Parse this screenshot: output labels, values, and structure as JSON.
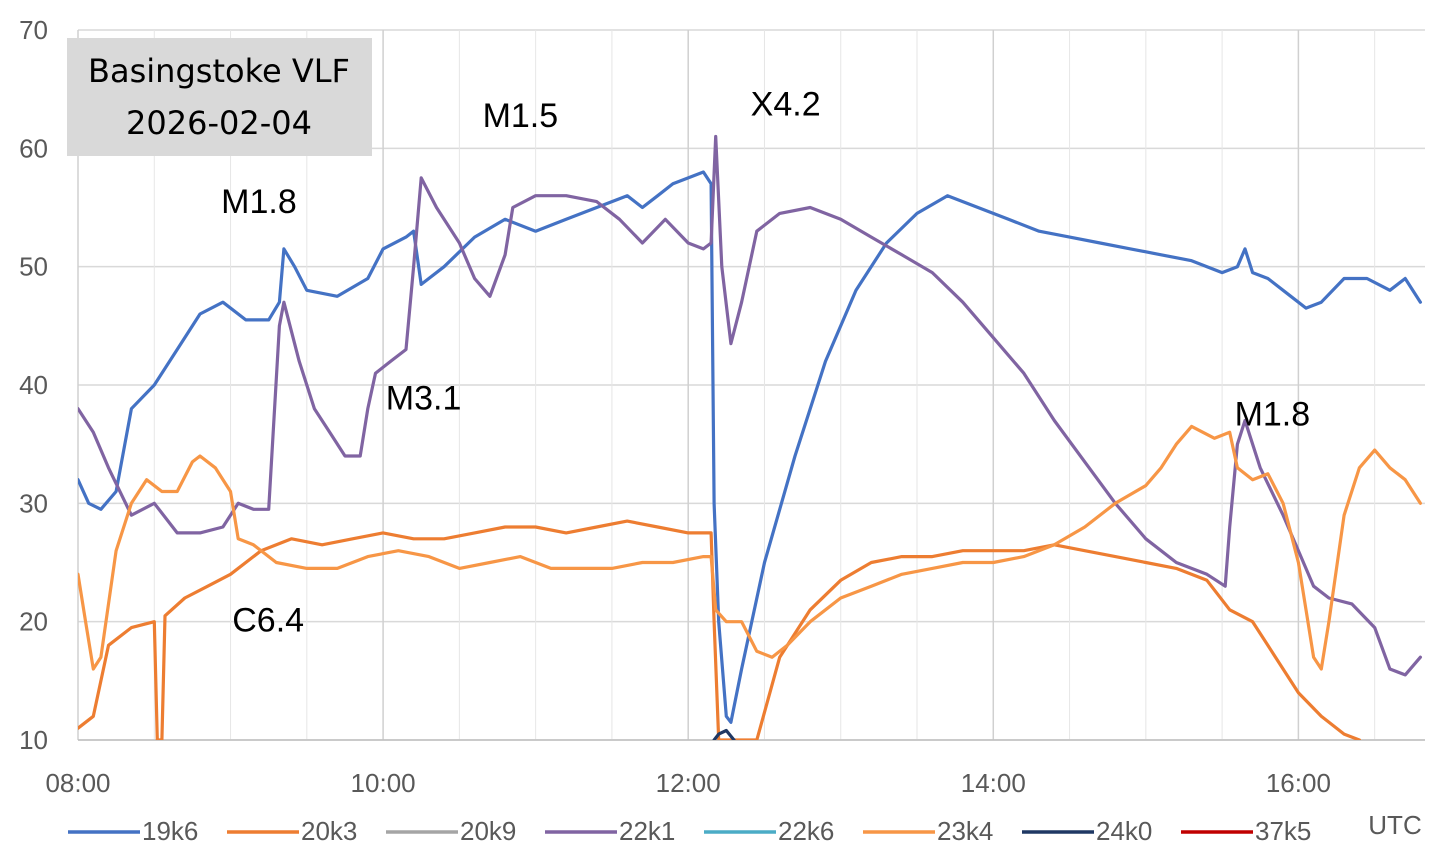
{
  "chart_data": {
    "type": "line",
    "title": "Basingstoke VLF",
    "subtitle": "2026-02-04",
    "xlabel": "UTC",
    "ylabel": "",
    "xlim": [
      8.0,
      16.83
    ],
    "ylim": [
      10,
      70
    ],
    "x_ticks": [
      "08:00",
      "10:00",
      "12:00",
      "14:00",
      "16:00"
    ],
    "y_ticks": [
      "10",
      "20",
      "30",
      "40",
      "50",
      "60",
      "70"
    ],
    "grid": true,
    "legend": "bottom",
    "series": [
      {
        "name": "19k6",
        "color": "#4472C4",
        "points": [
          [
            8.0,
            32
          ],
          [
            8.07,
            30
          ],
          [
            8.15,
            29.5
          ],
          [
            8.25,
            31
          ],
          [
            8.35,
            38
          ],
          [
            8.5,
            40
          ],
          [
            8.65,
            43
          ],
          [
            8.8,
            46
          ],
          [
            8.95,
            47
          ],
          [
            9.1,
            45.5
          ],
          [
            9.25,
            45.5
          ],
          [
            9.32,
            47
          ],
          [
            9.35,
            51.5
          ],
          [
            9.42,
            50
          ],
          [
            9.5,
            48
          ],
          [
            9.7,
            47.5
          ],
          [
            9.9,
            49
          ],
          [
            10.0,
            51.5
          ],
          [
            10.15,
            52.5
          ],
          [
            10.2,
            53
          ],
          [
            10.25,
            48.5
          ],
          [
            10.4,
            50
          ],
          [
            10.6,
            52.5
          ],
          [
            10.8,
            54
          ],
          [
            11.0,
            53
          ],
          [
            11.2,
            54
          ],
          [
            11.4,
            55
          ],
          [
            11.6,
            56
          ],
          [
            11.7,
            55
          ],
          [
            11.8,
            56
          ],
          [
            11.9,
            57
          ],
          [
            12.0,
            57.5
          ],
          [
            12.1,
            58
          ],
          [
            12.15,
            57
          ],
          [
            12.17,
            30
          ],
          [
            12.2,
            20
          ],
          [
            12.25,
            12
          ],
          [
            12.28,
            11.5
          ],
          [
            12.35,
            16
          ],
          [
            12.5,
            25
          ],
          [
            12.7,
            34
          ],
          [
            12.9,
            42
          ],
          [
            13.1,
            48
          ],
          [
            13.3,
            52
          ],
          [
            13.5,
            54.5
          ],
          [
            13.7,
            56
          ],
          [
            13.9,
            55
          ],
          [
            14.1,
            54
          ],
          [
            14.3,
            53
          ],
          [
            14.5,
            52.5
          ],
          [
            14.7,
            52
          ],
          [
            14.9,
            51.5
          ],
          [
            15.1,
            51
          ],
          [
            15.3,
            50.5
          ],
          [
            15.5,
            49.5
          ],
          [
            15.6,
            50
          ],
          [
            15.65,
            51.5
          ],
          [
            15.7,
            49.5
          ],
          [
            15.8,
            49
          ],
          [
            15.95,
            47.5
          ],
          [
            16.05,
            46.5
          ],
          [
            16.15,
            47
          ],
          [
            16.3,
            49
          ],
          [
            16.45,
            49
          ],
          [
            16.6,
            48
          ],
          [
            16.7,
            49
          ],
          [
            16.8,
            47
          ]
        ]
      },
      {
        "name": "20k3",
        "color": "#ED7D31",
        "points": [
          [
            8.0,
            11
          ],
          [
            8.1,
            12
          ],
          [
            8.2,
            18
          ],
          [
            8.35,
            19.5
          ],
          [
            8.5,
            20
          ],
          [
            8.52,
            10
          ],
          [
            8.55,
            10
          ],
          [
            8.57,
            20.5
          ],
          [
            8.7,
            22
          ],
          [
            8.85,
            23
          ],
          [
            9.0,
            24
          ],
          [
            9.2,
            26
          ],
          [
            9.4,
            27
          ],
          [
            9.6,
            26.5
          ],
          [
            9.8,
            27
          ],
          [
            10.0,
            27.5
          ],
          [
            10.2,
            27
          ],
          [
            10.4,
            27
          ],
          [
            10.6,
            27.5
          ],
          [
            10.8,
            28
          ],
          [
            11.0,
            28
          ],
          [
            11.2,
            27.5
          ],
          [
            11.4,
            28
          ],
          [
            11.6,
            28.5
          ],
          [
            11.8,
            28
          ],
          [
            12.0,
            27.5
          ],
          [
            12.15,
            27.5
          ],
          [
            12.17,
            20
          ],
          [
            12.2,
            10
          ],
          [
            12.45,
            10
          ],
          [
            12.6,
            17
          ],
          [
            12.8,
            21
          ],
          [
            13.0,
            23.5
          ],
          [
            13.2,
            25
          ],
          [
            13.4,
            25.5
          ],
          [
            13.6,
            25.5
          ],
          [
            13.8,
            26
          ],
          [
            14.0,
            26
          ],
          [
            14.2,
            26
          ],
          [
            14.4,
            26.5
          ],
          [
            14.6,
            26
          ],
          [
            14.8,
            25.5
          ],
          [
            15.0,
            25
          ],
          [
            15.2,
            24.5
          ],
          [
            15.4,
            23.5
          ],
          [
            15.55,
            21
          ],
          [
            15.7,
            20
          ],
          [
            15.85,
            17
          ],
          [
            16.0,
            14
          ],
          [
            16.15,
            12
          ],
          [
            16.3,
            10.5
          ],
          [
            16.4,
            10
          ]
        ]
      },
      {
        "name": "20k9",
        "color": "#A5A5A5",
        "points": []
      },
      {
        "name": "22k1",
        "color": "#8064A2",
        "points": [
          [
            8.0,
            38
          ],
          [
            8.1,
            36
          ],
          [
            8.2,
            33
          ],
          [
            8.35,
            29
          ],
          [
            8.5,
            30
          ],
          [
            8.65,
            27.5
          ],
          [
            8.8,
            27.5
          ],
          [
            8.95,
            28
          ],
          [
            9.05,
            30
          ],
          [
            9.15,
            29.5
          ],
          [
            9.25,
            29.5
          ],
          [
            9.32,
            45
          ],
          [
            9.35,
            47
          ],
          [
            9.45,
            42
          ],
          [
            9.55,
            38
          ],
          [
            9.65,
            36
          ],
          [
            9.75,
            34
          ],
          [
            9.85,
            34
          ],
          [
            9.9,
            38
          ],
          [
            9.95,
            41
          ],
          [
            10.05,
            42
          ],
          [
            10.15,
            43
          ],
          [
            10.2,
            50
          ],
          [
            10.25,
            57.5
          ],
          [
            10.35,
            55
          ],
          [
            10.5,
            52
          ],
          [
            10.6,
            49
          ],
          [
            10.7,
            47.5
          ],
          [
            10.8,
            51
          ],
          [
            10.85,
            55
          ],
          [
            11.0,
            56
          ],
          [
            11.2,
            56
          ],
          [
            11.4,
            55.5
          ],
          [
            11.55,
            54
          ],
          [
            11.7,
            52
          ],
          [
            11.85,
            54
          ],
          [
            12.0,
            52
          ],
          [
            12.1,
            51.5
          ],
          [
            12.15,
            52
          ],
          [
            12.18,
            61
          ],
          [
            12.22,
            50
          ],
          [
            12.28,
            43.5
          ],
          [
            12.35,
            47
          ],
          [
            12.45,
            53
          ],
          [
            12.6,
            54.5
          ],
          [
            12.8,
            55
          ],
          [
            13.0,
            54
          ],
          [
            13.2,
            52.5
          ],
          [
            13.4,
            51
          ],
          [
            13.6,
            49.5
          ],
          [
            13.8,
            47
          ],
          [
            14.0,
            44
          ],
          [
            14.2,
            41
          ],
          [
            14.4,
            37
          ],
          [
            14.6,
            33.5
          ],
          [
            14.8,
            30
          ],
          [
            15.0,
            27
          ],
          [
            15.2,
            25
          ],
          [
            15.4,
            24
          ],
          [
            15.52,
            23
          ],
          [
            15.55,
            28
          ],
          [
            15.6,
            35
          ],
          [
            15.65,
            37
          ],
          [
            15.75,
            33
          ],
          [
            15.9,
            29
          ],
          [
            16.0,
            26
          ],
          [
            16.1,
            23
          ],
          [
            16.2,
            22
          ],
          [
            16.35,
            21.5
          ],
          [
            16.5,
            19.5
          ],
          [
            16.6,
            16
          ],
          [
            16.7,
            15.5
          ],
          [
            16.8,
            17
          ]
        ]
      },
      {
        "name": "22k6",
        "color": "#4BACC6",
        "points": []
      },
      {
        "name": "23k4",
        "color": "#F79646",
        "points": [
          [
            8.0,
            24
          ],
          [
            8.05,
            20
          ],
          [
            8.1,
            16
          ],
          [
            8.15,
            17
          ],
          [
            8.25,
            26
          ],
          [
            8.35,
            30
          ],
          [
            8.45,
            32
          ],
          [
            8.55,
            31
          ],
          [
            8.65,
            31
          ],
          [
            8.75,
            33.5
          ],
          [
            8.8,
            34
          ],
          [
            8.9,
            33
          ],
          [
            9.0,
            31
          ],
          [
            9.05,
            27
          ],
          [
            9.15,
            26.5
          ],
          [
            9.3,
            25
          ],
          [
            9.5,
            24.5
          ],
          [
            9.7,
            24.5
          ],
          [
            9.9,
            25.5
          ],
          [
            10.1,
            26
          ],
          [
            10.3,
            25.5
          ],
          [
            10.5,
            24.5
          ],
          [
            10.7,
            25
          ],
          [
            10.9,
            25.5
          ],
          [
            11.1,
            24.5
          ],
          [
            11.3,
            24.5
          ],
          [
            11.5,
            24.5
          ],
          [
            11.7,
            25
          ],
          [
            11.9,
            25
          ],
          [
            12.1,
            25.5
          ],
          [
            12.15,
            25.5
          ],
          [
            12.18,
            21
          ],
          [
            12.25,
            20
          ],
          [
            12.35,
            20
          ],
          [
            12.45,
            17.5
          ],
          [
            12.55,
            17
          ],
          [
            12.65,
            18
          ],
          [
            12.8,
            20
          ],
          [
            13.0,
            22
          ],
          [
            13.2,
            23
          ],
          [
            13.4,
            24
          ],
          [
            13.6,
            24.5
          ],
          [
            13.8,
            25
          ],
          [
            14.0,
            25
          ],
          [
            14.2,
            25.5
          ],
          [
            14.4,
            26.5
          ],
          [
            14.6,
            28
          ],
          [
            14.8,
            30
          ],
          [
            15.0,
            31.5
          ],
          [
            15.1,
            33
          ],
          [
            15.2,
            35
          ],
          [
            15.3,
            36.5
          ],
          [
            15.45,
            35.5
          ],
          [
            15.55,
            36
          ],
          [
            15.6,
            33
          ],
          [
            15.7,
            32
          ],
          [
            15.8,
            32.5
          ],
          [
            15.9,
            30
          ],
          [
            16.0,
            25
          ],
          [
            16.05,
            21
          ],
          [
            16.1,
            17
          ],
          [
            16.15,
            16
          ],
          [
            16.2,
            20
          ],
          [
            16.3,
            29
          ],
          [
            16.4,
            33
          ],
          [
            16.5,
            34.5
          ],
          [
            16.6,
            33
          ],
          [
            16.7,
            32
          ],
          [
            16.8,
            30
          ]
        ]
      },
      {
        "name": "24k0",
        "color": "#1F3864",
        "points": [
          [
            12.17,
            10
          ],
          [
            12.2,
            10.5
          ],
          [
            12.25,
            10.8
          ],
          [
            12.3,
            10
          ]
        ]
      },
      {
        "name": "37k5",
        "color": "#C00000",
        "points": []
      }
    ],
    "annotations": [
      {
        "text": "M1.8",
        "x": 9.35,
        "y": 52
      },
      {
        "text": "M3.1",
        "x": 10.2,
        "y": 43
      },
      {
        "text": "M1.5",
        "x": 10.9,
        "y": 58
      },
      {
        "text": "X4.2",
        "x": 12.18,
        "y": 61.5
      },
      {
        "text": "C6.4",
        "x": 9.05,
        "y": 24
      },
      {
        "text": "M1.8",
        "x": 15.6,
        "y": 37
      }
    ]
  }
}
